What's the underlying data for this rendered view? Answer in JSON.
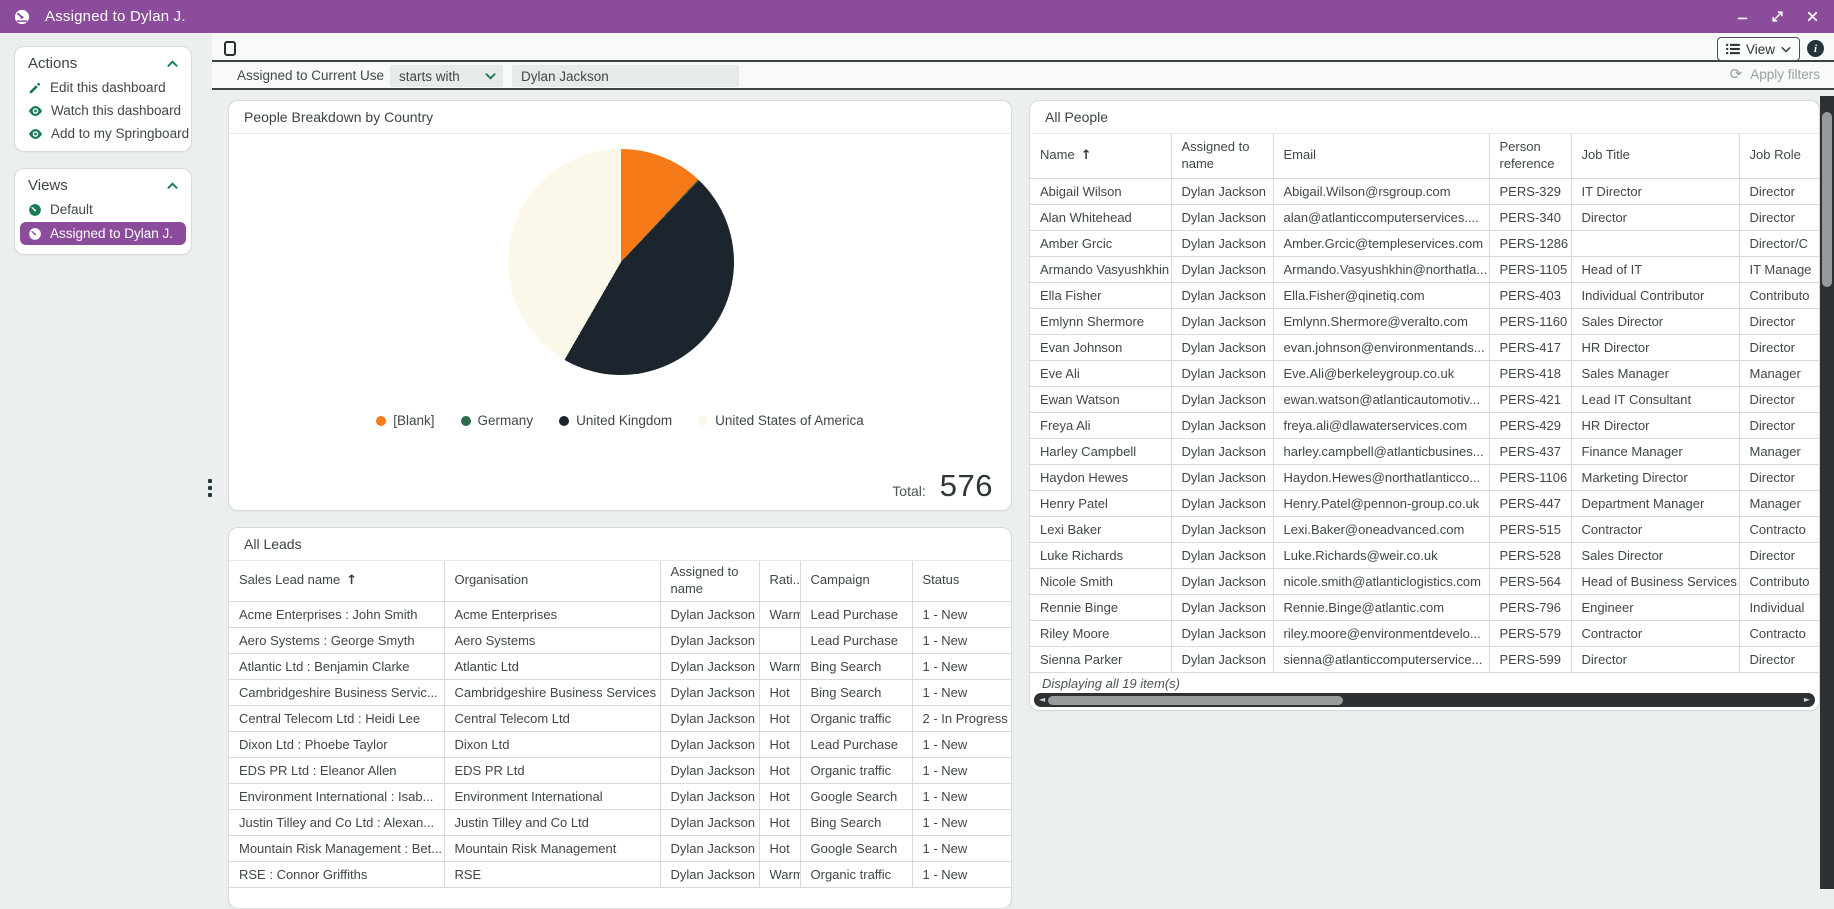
{
  "window": {
    "title": "Assigned to Dylan J.",
    "icon": "dashboard-gauge-icon"
  },
  "sidebar": {
    "actions": {
      "title": "Actions",
      "items": [
        {
          "icon": "pencil-icon",
          "label": "Edit this dashboard"
        },
        {
          "icon": "eye-icon",
          "label": "Watch this dashboard"
        },
        {
          "icon": "eye-icon",
          "label": "Add to my Springboard"
        }
      ]
    },
    "views": {
      "title": "Views",
      "items": [
        {
          "icon": "dashboard-gauge-icon",
          "label": "Default",
          "selected": false
        },
        {
          "icon": "dashboard-gauge-icon",
          "label": "Assigned to Dylan J.",
          "selected": true
        }
      ]
    }
  },
  "toolbar": {
    "view_label": "View"
  },
  "filter": {
    "field_label": "Assigned to Current Use",
    "operator": "starts with",
    "value": "Dylan Jackson",
    "apply_label": "Apply filters"
  },
  "chart_panel": {
    "title": "People Breakdown by Country",
    "total_label": "Total:",
    "total_value": "576"
  },
  "chart_data": {
    "type": "pie",
    "title": "People Breakdown by Country",
    "categories": [
      "[Blank]",
      "Germany",
      "United Kingdom",
      "United States of America"
    ],
    "values": [
      69,
      1,
      266,
      240
    ],
    "colors": [
      "#f67a17",
      "#2e6a4d",
      "#1c242e",
      "#fcf8e9"
    ],
    "total": 576,
    "legend_position": "bottom"
  },
  "leads_panel": {
    "title": "All Leads",
    "sort_indicator": "↑",
    "columns": [
      "Sales Lead name",
      "Organisation",
      "Assigned to name",
      "Rati...",
      "Campaign",
      "Status"
    ],
    "rows": [
      [
        "Acme Enterprises : John Smith",
        "Acme Enterprises",
        "Dylan Jackson",
        "Warm",
        "Lead Purchase",
        "1 - New"
      ],
      [
        "Aero Systems : George Smyth",
        "Aero Systems",
        "Dylan Jackson",
        "",
        "Lead Purchase",
        "1 - New"
      ],
      [
        "Atlantic Ltd : Benjamin Clarke",
        "Atlantic Ltd",
        "Dylan Jackson",
        "Warm",
        "Bing Search",
        "1 - New"
      ],
      [
        "Cambridgeshire Business Servic...",
        "Cambridgeshire Business Services",
        "Dylan Jackson",
        "Hot",
        "Bing Search",
        "1 - New"
      ],
      [
        "Central Telecom Ltd : Heidi Lee",
        "Central Telecom Ltd",
        "Dylan Jackson",
        "Hot",
        "Organic traffic",
        "2 - In Progress"
      ],
      [
        "Dixon Ltd : Phoebe Taylor",
        "Dixon Ltd",
        "Dylan Jackson",
        "Hot",
        "Lead Purchase",
        "1 - New"
      ],
      [
        "EDS PR Ltd : Eleanor Allen",
        "EDS PR Ltd",
        "Dylan Jackson",
        "Hot",
        "Organic traffic",
        "1 - New"
      ],
      [
        "Environment International : Isab...",
        "Environment International",
        "Dylan Jackson",
        "Hot",
        "Google Search",
        "1 - New"
      ],
      [
        "Justin Tilley and Co Ltd : Alexan...",
        "Justin Tilley and Co Ltd",
        "Dylan Jackson",
        "Hot",
        "Bing Search",
        "1 - New"
      ],
      [
        "Mountain Risk Management : Bet...",
        "Mountain Risk Management",
        "Dylan Jackson",
        "Hot",
        "Google Search",
        "1 - New"
      ],
      [
        "RSE : Connor Griffiths",
        "RSE",
        "Dylan Jackson",
        "Warm",
        "Organic traffic",
        "1 - New"
      ]
    ]
  },
  "people_panel": {
    "title": "All People",
    "sort_indicator": "↑",
    "columns": [
      "Name",
      "Assigned to name",
      "Email",
      "Person reference",
      "Job Title",
      "Job Role"
    ],
    "rows": [
      [
        "Abigail Wilson",
        "Dylan Jackson",
        "Abigail.Wilson@rsgroup.com",
        "PERS-329",
        "IT Director",
        "Director"
      ],
      [
        "Alan Whitehead",
        "Dylan Jackson",
        "alan@atlanticcomputerservices....",
        "PERS-340",
        "Director",
        "Director"
      ],
      [
        "Amber Grcic",
        "Dylan Jackson",
        "Amber.Grcic@templeservices.com",
        "PERS-1286",
        "",
        "Director/C"
      ],
      [
        "Armando Vasyushkhin",
        "Dylan Jackson",
        "Armando.Vasyushkhin@northatla...",
        "PERS-1105",
        "Head of IT",
        "IT Manage"
      ],
      [
        "Ella Fisher",
        "Dylan Jackson",
        "Ella.Fisher@qinetiq.com",
        "PERS-403",
        "Individual Contributor",
        "Contributo"
      ],
      [
        "Emlynn Shermore",
        "Dylan Jackson",
        "Emlynn.Shermore@veralto.com",
        "PERS-1160",
        "Sales Director",
        "Director"
      ],
      [
        "Evan Johnson",
        "Dylan Jackson",
        "evan.johnson@environmentands...",
        "PERS-417",
        "HR Director",
        "Director"
      ],
      [
        "Eve Ali",
        "Dylan Jackson",
        "Eve.Ali@berkeleygroup.co.uk",
        "PERS-418",
        "Sales Manager",
        "Manager"
      ],
      [
        "Ewan Watson",
        "Dylan Jackson",
        "ewan.watson@atlanticautomotiv...",
        "PERS-421",
        "Lead IT Consultant",
        "Director"
      ],
      [
        "Freya Ali",
        "Dylan Jackson",
        "freya.ali@dlawaterservices.com",
        "PERS-429",
        "HR Director",
        "Director"
      ],
      [
        "Harley Campbell",
        "Dylan Jackson",
        "harley.campbell@atlanticbusines...",
        "PERS-437",
        "Finance Manager",
        "Manager"
      ],
      [
        "Haydon Hewes",
        "Dylan Jackson",
        "Haydon.Hewes@northatlanticco...",
        "PERS-1106",
        "Marketing Director",
        "Director"
      ],
      [
        "Henry Patel",
        "Dylan Jackson",
        "Henry.Patel@pennon-group.co.uk",
        "PERS-447",
        "Department Manager",
        "Manager"
      ],
      [
        "Lexi Baker",
        "Dylan Jackson",
        "Lexi.Baker@oneadvanced.com",
        "PERS-515",
        "Contractor",
        "Contracto"
      ],
      [
        "Luke Richards",
        "Dylan Jackson",
        "Luke.Richards@weir.co.uk",
        "PERS-528",
        "Sales Director",
        "Director"
      ],
      [
        "Nicole Smith",
        "Dylan Jackson",
        "nicole.smith@atlanticlogistics.com",
        "PERS-564",
        "Head of Business Services",
        "Contributo"
      ],
      [
        "Rennie Binge",
        "Dylan Jackson",
        "Rennie.Binge@atlantic.com",
        "PERS-796",
        "Engineer",
        "Individual"
      ],
      [
        "Riley Moore",
        "Dylan Jackson",
        "riley.moore@environmentdevelo...",
        "PERS-579",
        "Contractor",
        "Contracto"
      ],
      [
        "Sienna Parker",
        "Dylan Jackson",
        "sienna@atlanticcomputerservice...",
        "PERS-599",
        "Director",
        "Director"
      ]
    ],
    "status": "Displaying all 19 item(s)"
  },
  "colors": {
    "titlebar": "#8c4c9c",
    "accent_green": "#177a52",
    "selected_view_bg": "#8c4c9c",
    "band_border": "#3c4344",
    "scroll_track": "#2d3134",
    "scroll_thumb": "#97999a"
  }
}
